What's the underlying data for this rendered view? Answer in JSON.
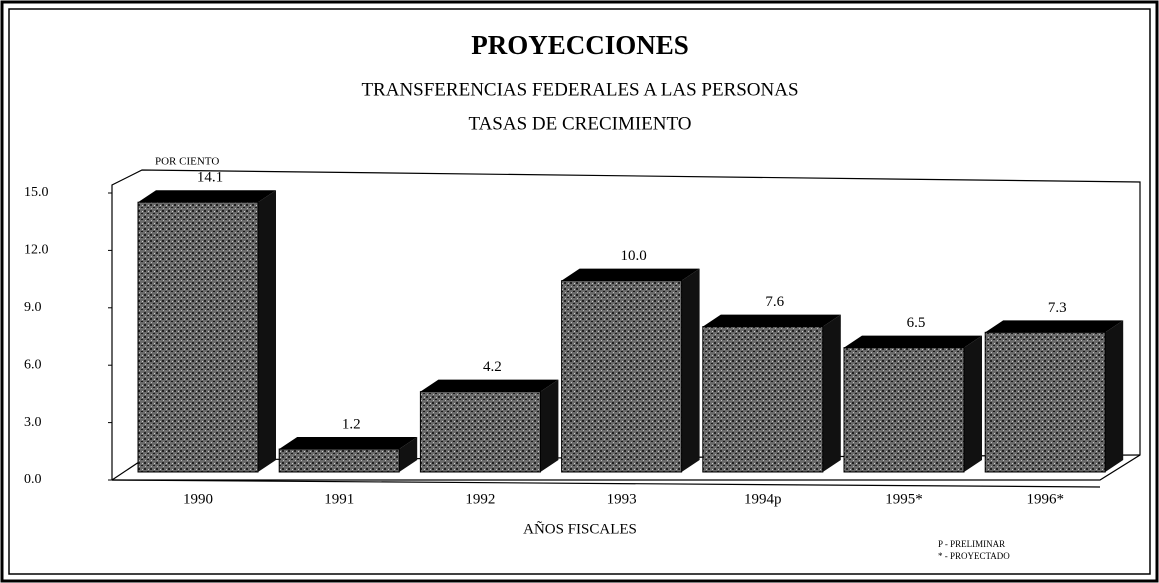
{
  "chart_data": {
    "type": "bar3d",
    "title": "PROYECCIONES",
    "subtitle": [
      "TRANSFERENCIAS FEDERALES A LAS PERSONAS",
      "TASAS DE CRECIMIENTO"
    ],
    "y_axis_label": "POR CIENTO",
    "x_axis_label": "AÑOS FISCALES",
    "notes": [
      "P - PRELIMINAR",
      "* - PROYECTADO"
    ],
    "categories": [
      "1990",
      "1991",
      "1992",
      "1993",
      "1994p",
      "1995*",
      "1996*"
    ],
    "values": [
      14.1,
      1.2,
      4.2,
      10.0,
      7.6,
      6.5,
      7.3
    ],
    "value_labels": [
      "14.1",
      "1.2",
      "4.2",
      "10.0",
      "7.6",
      "6.5",
      "7.3"
    ],
    "color": "#555555",
    "ylim": [
      0,
      15
    ],
    "yticks": [
      {
        "value": 0,
        "label": "0.0"
      },
      {
        "value": 3,
        "label": "3.0"
      },
      {
        "value": 6,
        "label": "6.0"
      },
      {
        "value": 9,
        "label": "9.0"
      },
      {
        "value": 12,
        "label": "12.0"
      },
      {
        "value": 15,
        "label": "15.0"
      }
    ]
  }
}
